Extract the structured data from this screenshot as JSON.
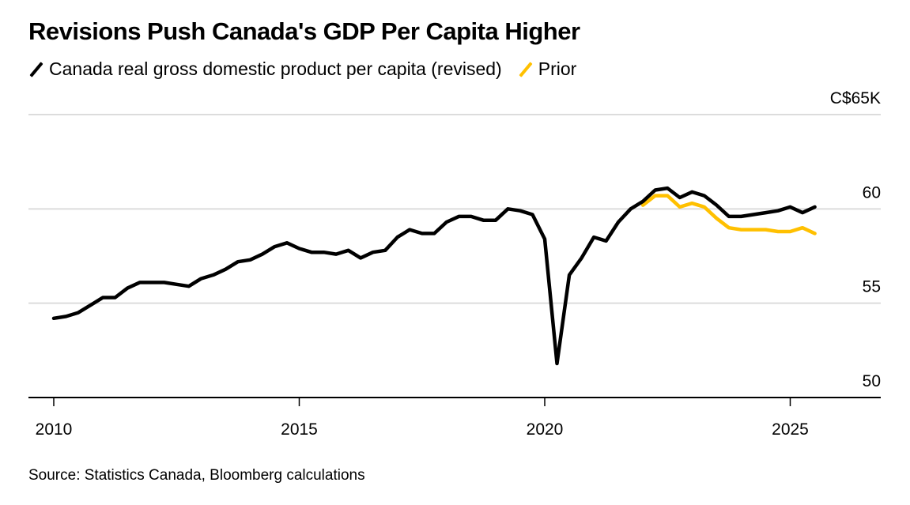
{
  "chart_data": {
    "type": "line",
    "title": "Revisions Push Canada's GDP Per Capita Higher",
    "xlabel": "",
    "ylabel": "",
    "y_unit_label": "C$65K",
    "ylim": [
      50,
      65
    ],
    "yticks": [
      50,
      55,
      60,
      65
    ],
    "ytick_labels": [
      "50",
      "55",
      "60",
      "C$65K"
    ],
    "xlim": [
      2010.0,
      2026.75
    ],
    "xticks": [
      2010,
      2015,
      2020,
      2025
    ],
    "xtick_labels": [
      "2010",
      "2015",
      "2020",
      "2025"
    ],
    "grid": true,
    "legend_position": "top-left",
    "series": [
      {
        "name": "Canada real gross domestic product per capita (revised)",
        "color": "#000000",
        "start": 2010.0,
        "step": 0.25,
        "values": [
          54.2,
          54.3,
          54.5,
          54.9,
          55.3,
          55.3,
          55.8,
          56.1,
          56.1,
          56.1,
          56.0,
          55.9,
          56.3,
          56.5,
          56.8,
          57.2,
          57.3,
          57.6,
          58.0,
          58.2,
          57.9,
          57.7,
          57.7,
          57.6,
          57.8,
          57.4,
          57.7,
          57.8,
          58.5,
          58.9,
          58.7,
          58.7,
          59.3,
          59.6,
          59.6,
          59.4,
          59.4,
          60.0,
          59.9,
          59.7,
          58.4,
          51.8,
          56.5,
          57.4,
          58.5,
          58.3,
          59.3,
          60.0,
          60.4,
          61.0,
          61.1,
          60.6,
          60.9,
          60.7,
          60.2,
          59.6,
          59.6,
          59.7,
          59.8,
          59.9,
          60.1,
          59.8,
          60.1
        ]
      },
      {
        "name": "Prior",
        "color": "#FFC000",
        "start": 2022.0,
        "step": 0.25,
        "values": [
          60.2,
          60.7,
          60.7,
          60.1,
          60.3,
          60.1,
          59.5,
          59.0,
          58.9,
          58.9,
          58.9,
          58.8,
          58.8,
          59.0,
          58.7
        ]
      }
    ]
  },
  "legend": [
    {
      "label": "Canada real gross domestic product per capita (revised)",
      "color": "#000000"
    },
    {
      "label": "Prior",
      "color": "#FFC000"
    }
  ],
  "source": "Source: Statistics Canada, Bloomberg calculations"
}
